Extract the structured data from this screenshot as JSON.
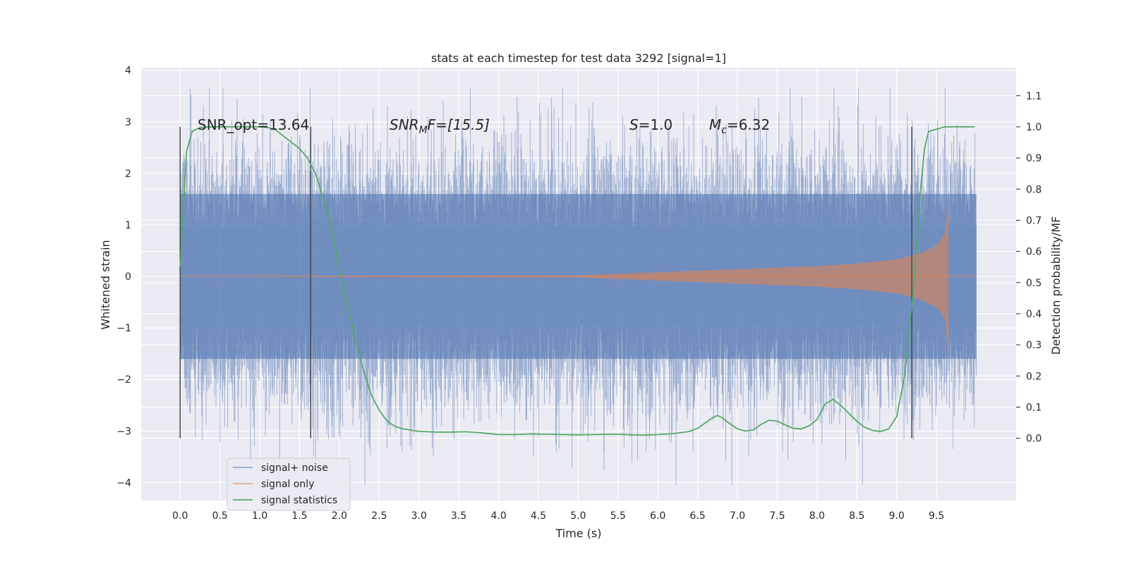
{
  "chart_data": {
    "type": "line",
    "title": "stats at each timestep for test data 3292 [signal=1]",
    "xlabel": "Time (s)",
    "ylabel": "Whitened strain",
    "ylabel_right": "Detection probability/MF",
    "xlim": [
      -0.49,
      10.5
    ],
    "ylim": [
      -4.35,
      4.05
    ],
    "ylim_right": [
      -0.2,
      1.19
    ],
    "grid": true,
    "legend_position": "lower-left",
    "x_ticks": [
      "0.0",
      "0.5",
      "1.0",
      "1.5",
      "2.0",
      "2.5",
      "3.0",
      "3.5",
      "4.0",
      "4.5",
      "5.0",
      "5.5",
      "6.0",
      "6.5",
      "7.0",
      "7.5",
      "8.0",
      "8.5",
      "9.0",
      "9.5"
    ],
    "y_ticks": [
      "4",
      "3",
      "2",
      "1",
      "0",
      "−1",
      "−2",
      "−3",
      "−4"
    ],
    "y_ticks_right": [
      "1.1",
      "1.0",
      "0.9",
      "0.8",
      "0.7",
      "0.6",
      "0.5",
      "0.4",
      "0.3",
      "0.2",
      "0.1",
      "0.0"
    ],
    "legend": [
      "signal+ noise",
      "signal only",
      "signal statistics"
    ],
    "annotations": {
      "snr_opt": "SNR_opt=13.64",
      "snr_mf_base": "SNR",
      "snr_mf_sub": "M",
      "snr_mf_tail": "F=[15.5]",
      "s_label": "S",
      "s_value": "=1.0",
      "mc_label": "M",
      "mc_sub": "c",
      "mc_value": "=6.32"
    },
    "vertical_markers": [
      0.0,
      1.64,
      9.19
    ],
    "series": [
      {
        "name": "signal+ noise",
        "color": "#4c72b0",
        "x_range": [
          0.0,
          10.0
        ],
        "core_amplitude": 1.6,
        "peak_max": 3.65,
        "peak_min": -4.05
      },
      {
        "name": "signal only",
        "color": "#dd8452",
        "x_range": [
          0.0,
          9.65
        ],
        "envelope": [
          [
            0.0,
            0.0
          ],
          [
            5.0,
            0.02
          ],
          [
            6.0,
            0.08
          ],
          [
            7.0,
            0.14
          ],
          [
            8.0,
            0.2
          ],
          [
            8.5,
            0.25
          ],
          [
            9.0,
            0.33
          ],
          [
            9.3,
            0.45
          ],
          [
            9.5,
            0.6
          ],
          [
            9.6,
            0.8
          ],
          [
            9.65,
            1.5
          ]
        ]
      },
      {
        "name": "signal statistics",
        "color": "#55a868",
        "axis": "right",
        "x": [
          0.0,
          0.08,
          0.15,
          0.25,
          0.4,
          0.6,
          0.8,
          1.0,
          1.1,
          1.2,
          1.3,
          1.4,
          1.5,
          1.6,
          1.7,
          1.8,
          1.9,
          2.0,
          2.1,
          2.2,
          2.3,
          2.4,
          2.5,
          2.6,
          2.7,
          2.8,
          3.0,
          3.2,
          3.4,
          3.6,
          3.8,
          4.0,
          4.2,
          4.4,
          4.6,
          4.8,
          5.0,
          5.2,
          5.4,
          5.6,
          5.8,
          6.0,
          6.2,
          6.4,
          6.5,
          6.6,
          6.7,
          6.75,
          6.8,
          6.9,
          7.0,
          7.1,
          7.2,
          7.3,
          7.4,
          7.5,
          7.6,
          7.7,
          7.8,
          7.9,
          8.0,
          8.1,
          8.2,
          8.3,
          8.4,
          8.5,
          8.6,
          8.7,
          8.8,
          8.9,
          9.0,
          9.1,
          9.2,
          9.25,
          9.3,
          9.35,
          9.4,
          9.6,
          9.8,
          9.98
        ],
        "y": [
          0.55,
          0.92,
          0.985,
          0.998,
          1.0,
          1.0,
          1.0,
          1.0,
          0.998,
          0.99,
          0.97,
          0.95,
          0.93,
          0.9,
          0.85,
          0.77,
          0.67,
          0.55,
          0.43,
          0.32,
          0.22,
          0.14,
          0.09,
          0.055,
          0.038,
          0.03,
          0.022,
          0.02,
          0.02,
          0.021,
          0.017,
          0.012,
          0.012,
          0.014,
          0.013,
          0.012,
          0.011,
          0.012,
          0.013,
          0.012,
          0.01,
          0.012,
          0.015,
          0.022,
          0.032,
          0.05,
          0.068,
          0.073,
          0.067,
          0.048,
          0.03,
          0.023,
          0.027,
          0.045,
          0.058,
          0.055,
          0.043,
          0.032,
          0.03,
          0.04,
          0.06,
          0.11,
          0.125,
          0.105,
          0.08,
          0.055,
          0.035,
          0.025,
          0.022,
          0.03,
          0.07,
          0.2,
          0.45,
          0.62,
          0.8,
          0.93,
          0.985,
          1.0,
          1.0,
          1.0
        ]
      }
    ]
  }
}
